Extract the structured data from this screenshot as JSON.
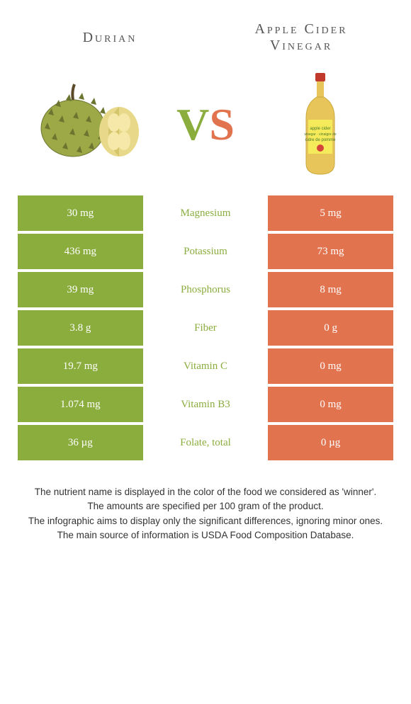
{
  "header": {
    "left_title": "Durian",
    "right_title": "Apple Cider Vinegar",
    "vs_v": "V",
    "vs_s": "S"
  },
  "colors": {
    "left": "#8aad3e",
    "right": "#e2734f",
    "bg": "#ffffff"
  },
  "rows": [
    {
      "left": "30 mg",
      "label": "Magnesium",
      "right": "5 mg",
      "winner": "left"
    },
    {
      "left": "436 mg",
      "label": "Potassium",
      "right": "73 mg",
      "winner": "left"
    },
    {
      "left": "39 mg",
      "label": "Phosphorus",
      "right": "8 mg",
      "winner": "left"
    },
    {
      "left": "3.8 g",
      "label": "Fiber",
      "right": "0 g",
      "winner": "left"
    },
    {
      "left": "19.7 mg",
      "label": "Vitamin C",
      "right": "0 mg",
      "winner": "left"
    },
    {
      "left": "1.074 mg",
      "label": "Vitamin B3",
      "right": "0 mg",
      "winner": "left"
    },
    {
      "left": "36 µg",
      "label": "Folate, total",
      "right": "0 µg",
      "winner": "left"
    }
  ],
  "footer": {
    "line1": "The nutrient name is displayed in the color of the food we considered as 'winner'.",
    "line2": "The amounts are specified per 100 gram of the product.",
    "line3": "The infographic aims to display only the significant differences, ignoring minor ones.",
    "line4": "The main source of information is USDA Food Composition Database."
  }
}
